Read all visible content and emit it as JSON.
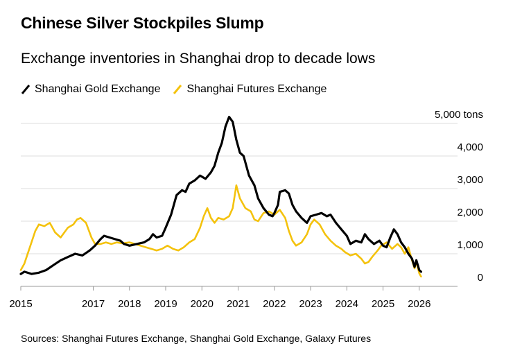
{
  "header": {
    "title": "Chinese Silver Stockpiles Slump",
    "subtitle": "Exchange inventories in Shanghai drop to decade lows"
  },
  "footer": {
    "source": "Sources: Shanghai Futures Exchange, Shanghai Gold Exchange, Galaxy Futures"
  },
  "chart_data": {
    "type": "line",
    "title": "Chinese Silver Stockpiles Slump",
    "subtitle": "Exchange inventories in Shanghai drop to decade lows",
    "ylabel": "",
    "yunit": "tons",
    "ylim": [
      0,
      5000
    ],
    "yticks": [
      0,
      1000,
      2000,
      3000,
      4000,
      5000
    ],
    "ytick_labels": [
      "0",
      "1,000",
      "2,000",
      "3,000",
      "4,000",
      "5,000 tons"
    ],
    "xlim": [
      2015,
      2026.1
    ],
    "xticks": [
      2015,
      2017,
      2018,
      2019,
      2020,
      2021,
      2022,
      2023,
      2024,
      2025,
      2026
    ],
    "xtick_labels": [
      "2015",
      "2017",
      "2018",
      "2019",
      "2020",
      "2021",
      "2022",
      "2023",
      "2024",
      "2025",
      "2026"
    ],
    "grid": "horizontal",
    "legend_position": "top-left",
    "series": [
      {
        "name": "Shanghai Gold Exchange",
        "color": "#000000",
        "points": [
          [
            2015.0,
            380
          ],
          [
            2015.1,
            450
          ],
          [
            2015.3,
            380
          ],
          [
            2015.5,
            420
          ],
          [
            2015.7,
            500
          ],
          [
            2015.9,
            650
          ],
          [
            2016.1,
            800
          ],
          [
            2016.3,
            900
          ],
          [
            2016.5,
            1000
          ],
          [
            2016.7,
            950
          ],
          [
            2016.9,
            1100
          ],
          [
            2017.05,
            1250
          ],
          [
            2017.2,
            1450
          ],
          [
            2017.3,
            1550
          ],
          [
            2017.45,
            1500
          ],
          [
            2017.6,
            1450
          ],
          [
            2017.75,
            1400
          ],
          [
            2017.85,
            1300
          ],
          [
            2018.0,
            1250
          ],
          [
            2018.2,
            1300
          ],
          [
            2018.4,
            1350
          ],
          [
            2018.55,
            1450
          ],
          [
            2018.65,
            1600
          ],
          [
            2018.75,
            1500
          ],
          [
            2018.9,
            1550
          ],
          [
            2019.0,
            1800
          ],
          [
            2019.15,
            2200
          ],
          [
            2019.3,
            2800
          ],
          [
            2019.45,
            2950
          ],
          [
            2019.55,
            2900
          ],
          [
            2019.65,
            3150
          ],
          [
            2019.8,
            3250
          ],
          [
            2019.95,
            3400
          ],
          [
            2020.1,
            3300
          ],
          [
            2020.25,
            3500
          ],
          [
            2020.35,
            3700
          ],
          [
            2020.45,
            4100
          ],
          [
            2020.55,
            4400
          ],
          [
            2020.65,
            4900
          ],
          [
            2020.75,
            5200
          ],
          [
            2020.85,
            5050
          ],
          [
            2020.95,
            4500
          ],
          [
            2021.05,
            4100
          ],
          [
            2021.15,
            4000
          ],
          [
            2021.3,
            3400
          ],
          [
            2021.45,
            3100
          ],
          [
            2021.55,
            2700
          ],
          [
            2021.7,
            2400
          ],
          [
            2021.85,
            2200
          ],
          [
            2021.95,
            2150
          ],
          [
            2022.0,
            2250
          ],
          [
            2022.1,
            2500
          ],
          [
            2022.15,
            2900
          ],
          [
            2022.3,
            2950
          ],
          [
            2022.4,
            2850
          ],
          [
            2022.5,
            2500
          ],
          [
            2022.6,
            2300
          ],
          [
            2022.75,
            2100
          ],
          [
            2022.9,
            1950
          ],
          [
            2023.0,
            2150
          ],
          [
            2023.15,
            2200
          ],
          [
            2023.3,
            2250
          ],
          [
            2023.45,
            2150
          ],
          [
            2023.55,
            2200
          ],
          [
            2023.7,
            1950
          ],
          [
            2023.85,
            1750
          ],
          [
            2024.0,
            1550
          ],
          [
            2024.1,
            1300
          ],
          [
            2024.25,
            1400
          ],
          [
            2024.4,
            1350
          ],
          [
            2024.5,
            1600
          ],
          [
            2024.6,
            1450
          ],
          [
            2024.75,
            1300
          ],
          [
            2024.9,
            1400
          ],
          [
            2025.0,
            1250
          ],
          [
            2025.1,
            1200
          ],
          [
            2025.2,
            1500
          ],
          [
            2025.3,
            1750
          ],
          [
            2025.4,
            1600
          ],
          [
            2025.5,
            1350
          ],
          [
            2025.6,
            1200
          ],
          [
            2025.7,
            1000
          ],
          [
            2025.8,
            850
          ],
          [
            2025.87,
            600
          ],
          [
            2025.92,
            800
          ],
          [
            2026.0,
            500
          ],
          [
            2026.05,
            450
          ]
        ]
      },
      {
        "name": "Shanghai Futures Exchange",
        "color": "#F4C20D",
        "points": [
          [
            2015.0,
            500
          ],
          [
            2015.1,
            700
          ],
          [
            2015.25,
            1200
          ],
          [
            2015.4,
            1700
          ],
          [
            2015.5,
            1900
          ],
          [
            2015.65,
            1850
          ],
          [
            2015.8,
            1950
          ],
          [
            2015.95,
            1650
          ],
          [
            2016.1,
            1500
          ],
          [
            2016.3,
            1800
          ],
          [
            2016.45,
            1900
          ],
          [
            2016.55,
            2050
          ],
          [
            2016.65,
            2100
          ],
          [
            2016.8,
            1950
          ],
          [
            2016.95,
            1500
          ],
          [
            2017.05,
            1300
          ],
          [
            2017.2,
            1300
          ],
          [
            2017.35,
            1350
          ],
          [
            2017.5,
            1300
          ],
          [
            2017.65,
            1350
          ],
          [
            2017.8,
            1320
          ],
          [
            2018.0,
            1350
          ],
          [
            2018.15,
            1300
          ],
          [
            2018.3,
            1250
          ],
          [
            2018.45,
            1200
          ],
          [
            2018.6,
            1150
          ],
          [
            2018.75,
            1100
          ],
          [
            2018.9,
            1150
          ],
          [
            2019.05,
            1250
          ],
          [
            2019.2,
            1150
          ],
          [
            2019.35,
            1100
          ],
          [
            2019.5,
            1200
          ],
          [
            2019.65,
            1350
          ],
          [
            2019.8,
            1450
          ],
          [
            2019.95,
            1800
          ],
          [
            2020.05,
            2150
          ],
          [
            2020.15,
            2400
          ],
          [
            2020.25,
            2100
          ],
          [
            2020.35,
            1950
          ],
          [
            2020.45,
            2100
          ],
          [
            2020.6,
            2050
          ],
          [
            2020.75,
            2150
          ],
          [
            2020.85,
            2400
          ],
          [
            2020.95,
            3100
          ],
          [
            2021.05,
            2700
          ],
          [
            2021.2,
            2400
          ],
          [
            2021.35,
            2300
          ],
          [
            2021.45,
            2050
          ],
          [
            2021.55,
            2000
          ],
          [
            2021.7,
            2250
          ],
          [
            2021.85,
            2300
          ],
          [
            2022.0,
            2200
          ],
          [
            2022.15,
            2350
          ],
          [
            2022.3,
            2100
          ],
          [
            2022.4,
            1700
          ],
          [
            2022.5,
            1400
          ],
          [
            2022.6,
            1250
          ],
          [
            2022.75,
            1350
          ],
          [
            2022.9,
            1600
          ],
          [
            2023.0,
            1900
          ],
          [
            2023.1,
            2050
          ],
          [
            2023.25,
            1900
          ],
          [
            2023.4,
            1600
          ],
          [
            2023.55,
            1400
          ],
          [
            2023.7,
            1250
          ],
          [
            2023.85,
            1150
          ],
          [
            2023.95,
            1050
          ],
          [
            2024.1,
            950
          ],
          [
            2024.25,
            1000
          ],
          [
            2024.4,
            850
          ],
          [
            2024.5,
            700
          ],
          [
            2024.6,
            750
          ],
          [
            2024.7,
            900
          ],
          [
            2024.85,
            1100
          ],
          [
            2024.95,
            1250
          ],
          [
            2025.1,
            1350
          ],
          [
            2025.25,
            1150
          ],
          [
            2025.4,
            1300
          ],
          [
            2025.5,
            1200
          ],
          [
            2025.6,
            1000
          ],
          [
            2025.7,
            1200
          ],
          [
            2025.8,
            800
          ],
          [
            2025.87,
            550
          ],
          [
            2025.92,
            750
          ],
          [
            2026.0,
            400
          ],
          [
            2026.05,
            300
          ]
        ]
      }
    ]
  }
}
